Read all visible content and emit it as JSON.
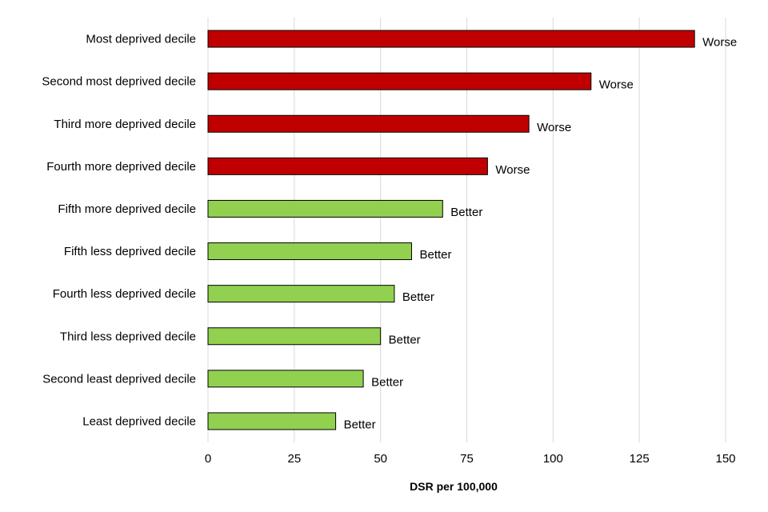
{
  "chart_data": {
    "type": "bar",
    "orientation": "horizontal",
    "categories": [
      "Most deprived decile",
      "Second most deprived decile",
      "Third more deprived decile",
      "Fourth more deprived decile",
      "Fifth more deprived decile",
      "Fifth less deprived decile",
      "Fourth less deprived decile",
      "Third less deprived decile",
      "Second least deprived decile",
      "Least deprived decile"
    ],
    "values": [
      141,
      111,
      93,
      81,
      68,
      59,
      54,
      50,
      45,
      37
    ],
    "labels": [
      "Worse",
      "Worse",
      "Worse",
      "Worse",
      "Better",
      "Better",
      "Better",
      "Better",
      "Better",
      "Better"
    ],
    "colors": {
      "Worse": "#c00000",
      "Better": "#92d050"
    },
    "xlabel": "DSR per 100,000",
    "xlim": [
      0,
      150
    ],
    "xticks": [
      0,
      25,
      50,
      75,
      100,
      125,
      150
    ],
    "grid": "vertical"
  }
}
